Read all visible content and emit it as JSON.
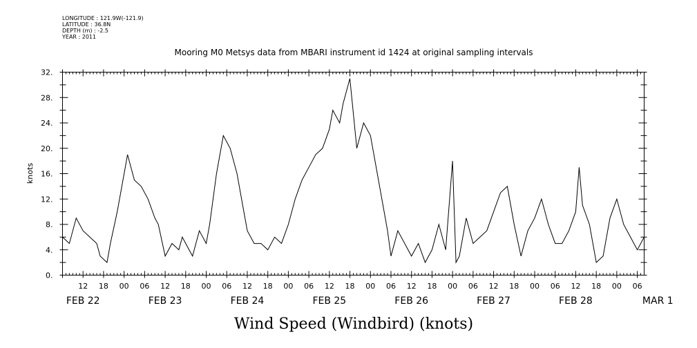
{
  "header": {
    "longitude": "LONGITUDE : 121.9W(-121.9)",
    "latitude": "LATITUDE : 36.8N",
    "depth": "DEPTH (m) : -2.5",
    "year": "YEAR : 2011"
  },
  "chart_data": {
    "type": "line",
    "title": "Mooring M0 Metsys data from MBARI instrument id 1424 at original sampling intervals",
    "ylabel": "knots",
    "xlabel": "Wind Speed (Windbird) (knots)",
    "ylim": [
      0,
      32
    ],
    "y_ticks": [
      "0.",
      "4.",
      "8.",
      "12.",
      "16.",
      "20.",
      "24.",
      "28.",
      "32."
    ],
    "x_range_hours": [
      "2011-02-22T06:00",
      "2011-03-01T08:00"
    ],
    "x_hour_tick_labels": [
      "12",
      "18",
      "00",
      "06",
      "12",
      "18",
      "00",
      "06",
      "12",
      "18",
      "00",
      "06",
      "12",
      "18",
      "00",
      "06",
      "12",
      "18",
      "00",
      "06",
      "12",
      "18",
      "00",
      "06",
      "12",
      "18",
      "00",
      "06"
    ],
    "day_labels": [
      "FEB 22",
      "FEB 23",
      "FEB 24",
      "FEB 25",
      "FEB 26",
      "FEB 27",
      "FEB 28",
      "MAR  1"
    ],
    "grid": false,
    "series": [
      {
        "name": "",
        "x": [
          "02-22 06:00",
          "02-22 08:00",
          "02-22 10:00",
          "02-22 12:00",
          "02-22 14:00",
          "02-22 16:00",
          "02-22 17:00",
          "02-22 19:00",
          "02-22 20:00",
          "02-22 22:00",
          "02-23 00:00",
          "02-23 01:00",
          "02-23 03:00",
          "02-23 05:00",
          "02-23 07:00",
          "02-23 09:00",
          "02-23 10:00",
          "02-23 12:00",
          "02-23 14:00",
          "02-23 16:00",
          "02-23 17:00",
          "02-23 18:00",
          "02-23 20:00",
          "02-23 22:00",
          "02-24 00:00",
          "02-24 01:00",
          "02-24 03:00",
          "02-24 05:00",
          "02-24 07:00",
          "02-24 09:00",
          "02-24 11:00",
          "02-24 12:00",
          "02-24 14:00",
          "02-24 16:00",
          "02-24 18:00",
          "02-24 20:00",
          "02-24 22:00",
          "02-25 00:00",
          "02-25 02:00",
          "02-25 04:00",
          "02-25 06:00",
          "02-25 08:00",
          "02-25 10:00",
          "02-25 12:00",
          "02-25 13:00",
          "02-25 14:00",
          "02-25 15:00",
          "02-25 16:00",
          "02-25 18:00",
          "02-25 20:00",
          "02-25 22:00",
          "02-26 00:00",
          "02-26 02:00",
          "02-26 04:00",
          "02-26 05:00",
          "02-26 06:00",
          "02-26 08:00",
          "02-26 10:00",
          "02-26 12:00",
          "02-26 14:00",
          "02-26 16:00",
          "02-26 18:00",
          "02-26 20:00",
          "02-26 22:00",
          "02-27 00:00",
          "02-27 01:00",
          "02-27 02:00",
          "02-27 04:00",
          "02-27 06:00",
          "02-27 08:00",
          "02-27 10:00",
          "02-27 12:00",
          "02-27 14:00",
          "02-27 16:00",
          "02-27 18:00",
          "02-27 20:00",
          "02-27 22:00",
          "02-28 00:00",
          "02-28 02:00",
          "02-28 04:00",
          "02-28 06:00",
          "02-28 08:00",
          "02-28 10:00",
          "02-28 12:00",
          "02-28 13:00",
          "02-28 14:00",
          "02-28 16:00",
          "02-28 18:00",
          "02-28 20:00",
          "02-28 22:00",
          "03-01 00:00",
          "03-01 02:00",
          "03-01 04:00",
          "03-01 06:00",
          "03-01 08:00"
        ],
        "y": [
          6,
          5,
          9,
          7,
          6,
          5,
          3,
          2,
          5,
          10,
          16,
          19,
          15,
          14,
          12,
          9,
          8,
          3,
          5,
          4,
          6,
          5,
          3,
          7,
          5,
          8,
          16,
          22,
          20,
          16,
          10,
          7,
          5,
          5,
          4,
          6,
          5,
          8,
          12,
          15,
          17,
          19,
          20,
          23,
          26,
          25,
          24,
          27,
          31,
          20,
          24,
          22,
          16,
          10,
          7,
          3,
          7,
          5,
          3,
          5,
          2,
          4,
          8,
          4,
          18,
          2,
          3,
          9,
          5,
          6,
          7,
          10,
          13,
          14,
          8,
          3,
          7,
          9,
          12,
          8,
          5,
          5,
          7,
          10,
          17,
          11,
          8,
          2,
          3,
          9,
          12,
          8,
          6,
          4,
          6
        ]
      }
    ]
  }
}
